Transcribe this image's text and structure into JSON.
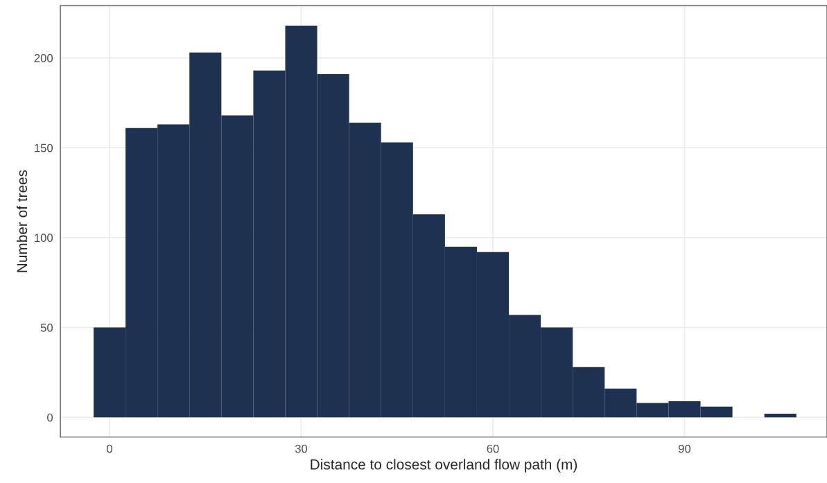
{
  "chart_data": {
    "type": "histogram",
    "xlabel": "Distance to closest overland flow path (m)",
    "ylabel": "Number of trees",
    "bins": [
      -2.5,
      2.5,
      7.5,
      12.5,
      17.5,
      22.5,
      27.5,
      32.5,
      37.5,
      42.5,
      47.5,
      52.5,
      57.5,
      62.5,
      67.5,
      72.5,
      77.5,
      82.5,
      87.5,
      92.5,
      97.5,
      102.5,
      107.5
    ],
    "values": [
      50,
      161,
      163,
      203,
      168,
      193,
      218,
      191,
      164,
      153,
      113,
      95,
      92,
      57,
      50,
      28,
      16,
      8,
      9,
      6,
      0,
      2
    ],
    "color": "#1f3150",
    "xlim": [
      -7.7,
      112.3
    ],
    "ylim": [
      -11,
      229
    ],
    "xticks": [
      0,
      30,
      60,
      90
    ],
    "yticks": [
      0,
      50,
      100,
      150,
      200
    ],
    "grid": true
  }
}
